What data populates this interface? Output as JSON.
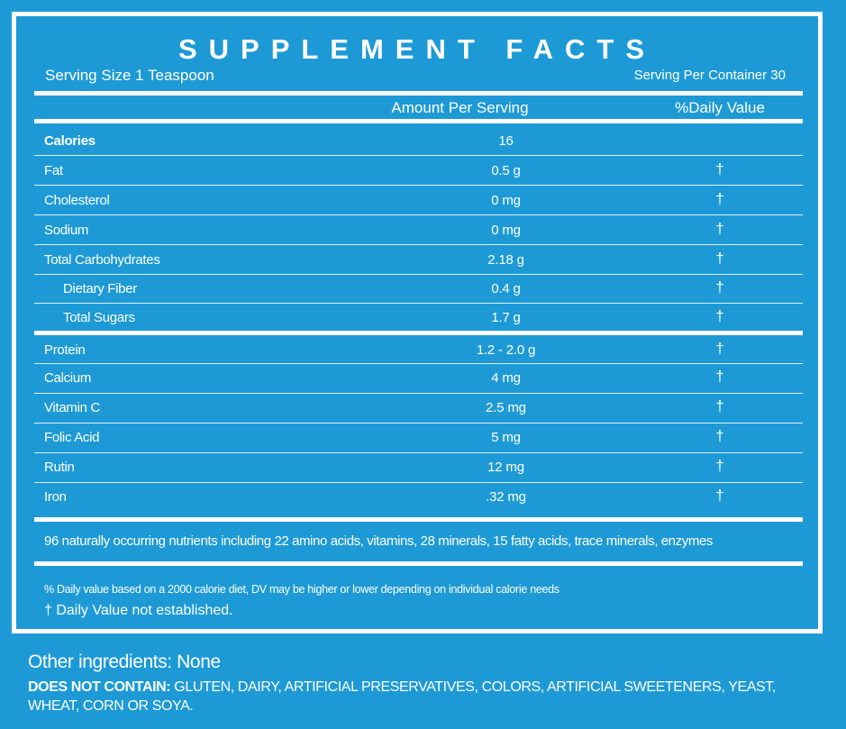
{
  "header": {
    "title": "SUPPLEMENT FACTS",
    "serving_size": "Serving Size 1 Teaspoon",
    "servings_per_container": "Serving Per Container  30"
  },
  "columns": {
    "amount": "Amount Per Serving",
    "daily_value": "%Daily Value"
  },
  "rows": [
    {
      "name": "Calories",
      "amount": "16",
      "dv": ""
    },
    {
      "name": "Fat",
      "amount": "0.5 g",
      "dv": "†"
    },
    {
      "name": "Cholesterol",
      "amount": "0 mg",
      "dv": "†"
    },
    {
      "name": "Sodium",
      "amount": "0 mg",
      "dv": "†"
    },
    {
      "name": "Total Carbohydrates",
      "amount": "2.18 g",
      "dv": "†"
    },
    {
      "name": "Dietary Fiber",
      "amount": "0.4 g",
      "dv": "†"
    },
    {
      "name": "Total Sugars",
      "amount": "1.7 g",
      "dv": "†"
    },
    {
      "name": "Protein",
      "amount": "1.2 - 2.0 g",
      "dv": "†"
    },
    {
      "name": "Calcium",
      "amount": "4 mg",
      "dv": "†"
    },
    {
      "name": "Vitamin C",
      "amount": "2.5 mg",
      "dv": "†"
    },
    {
      "name": "Folic Acid",
      "amount": "5 mg",
      "dv": "†"
    },
    {
      "name": "Rutin",
      "amount": "12 mg",
      "dv": "†"
    },
    {
      "name": "Iron",
      "amount": ".32 mg",
      "dv": "†"
    }
  ],
  "notes": {
    "nutrients": "96 naturally occurring nutrients including 22 amino acids, vitamins, 28 minerals, 15 fatty acids, trace minerals, enzymes",
    "daily_value_basis": "% Daily value based on a 2000 calorie diet, DV may be higher or lower depending on individual calorie needs",
    "dagger": "† Daily Value not established."
  },
  "footer": {
    "other_ingredients": "Other ingredients: None",
    "does_not_contain_label": "DOES NOT CONTAIN:",
    "does_not_contain_text": " GLUTEN, DAIRY, ARTIFICIAL PRESERVATIVES, COLORS, ARTIFICIAL SWEETENERS, YEAST, WHEAT, CORN OR SOYA."
  },
  "colors": {
    "background": "#1d9ad6",
    "foreground": "#ffffff"
  }
}
